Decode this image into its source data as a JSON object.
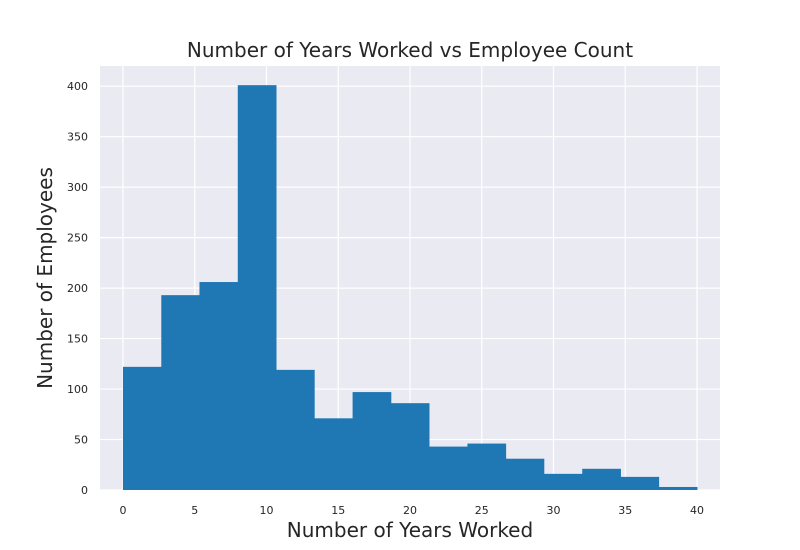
{
  "chart_data": {
    "type": "bar",
    "title": "Number of Years Worked vs Employee Count",
    "xlabel": "Number of Years Worked",
    "ylabel": "Number of Employees",
    "xlim": [
      -1.6,
      41.6
    ],
    "ylim": [
      0,
      420
    ],
    "x_ticks": [
      0,
      5,
      10,
      15,
      20,
      25,
      30,
      35,
      40
    ],
    "y_ticks": [
      0,
      50,
      100,
      150,
      200,
      250,
      300,
      350,
      400
    ],
    "grid": true,
    "legend": "none",
    "bin_edges": [
      0,
      2.67,
      5.33,
      8,
      10.67,
      13.33,
      16,
      18.67,
      21.33,
      24,
      26.67,
      29.33,
      32,
      34.67,
      37.33,
      40
    ],
    "values": [
      122,
      193,
      206,
      401,
      119,
      71,
      97,
      86,
      43,
      46,
      31,
      16,
      21,
      13,
      3
    ],
    "colors": {
      "bar": "#1f77b4",
      "plot_background": "#eaeaf2",
      "grid": "#ffffff",
      "text": "#262626"
    }
  }
}
